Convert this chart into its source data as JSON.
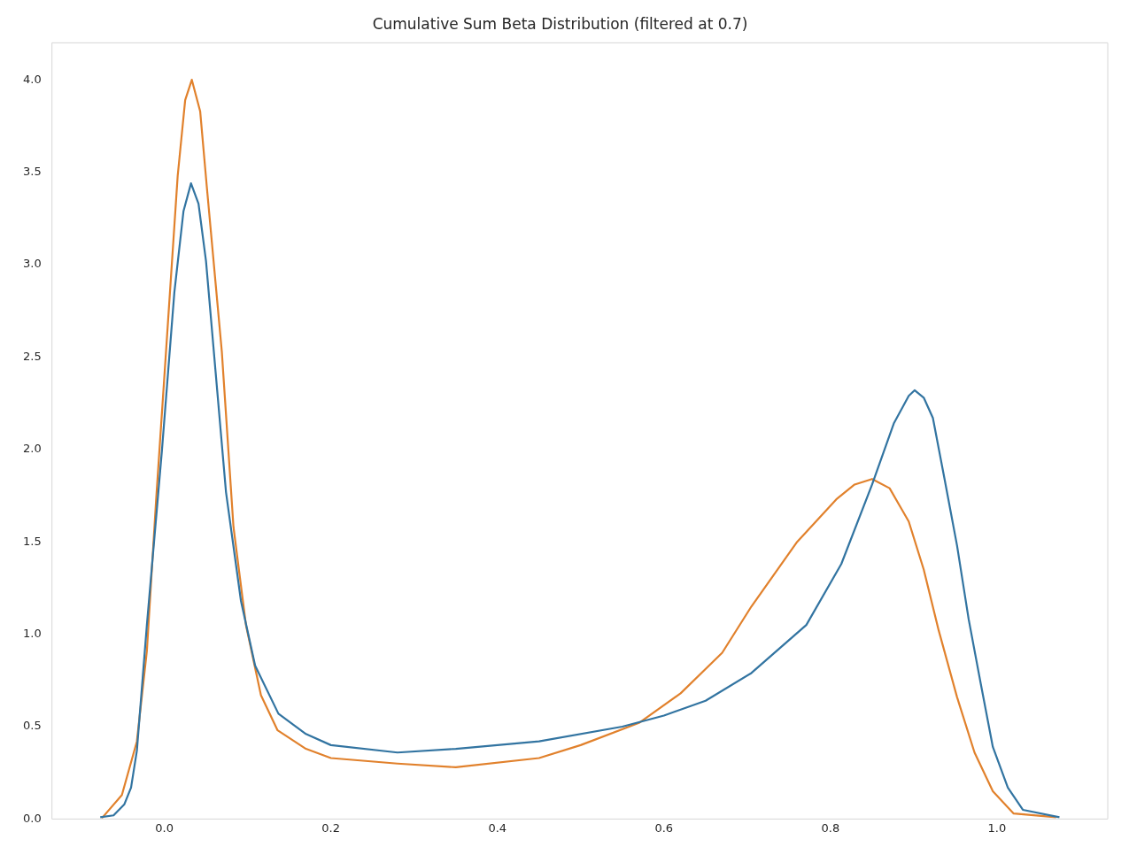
{
  "chart_data": {
    "type": "line",
    "title": "Cumulative Sum Beta Distribution (filtered at 0.7)",
    "grid": false,
    "marker": "none",
    "line_style": "solid",
    "xlim": [
      -0.135,
      1.133
    ],
    "ylim": [
      0,
      4.2
    ],
    "xticks": [
      {
        "value": 0,
        "label": "0.0"
      },
      {
        "value": 0.2,
        "label": "0.2"
      },
      {
        "value": 0.4,
        "label": "0.4"
      },
      {
        "value": 0.6,
        "label": "0.6"
      },
      {
        "value": 0.8,
        "label": "0.8"
      },
      {
        "value": 1,
        "label": "1.0"
      }
    ],
    "yticks": [
      {
        "value": 0,
        "label": "0.0"
      },
      {
        "value": 0.5,
        "label": "0.5"
      },
      {
        "value": 1,
        "label": "1.0"
      },
      {
        "value": 1.5,
        "label": "1.5"
      },
      {
        "value": 2,
        "label": "2.0"
      },
      {
        "value": 2.5,
        "label": "2.5"
      },
      {
        "value": 3,
        "label": "3.0"
      },
      {
        "value": 3.5,
        "label": "3.5"
      },
      {
        "value": 4,
        "label": "4.0"
      }
    ],
    "series": [
      {
        "color": "#3274a1",
        "x": [
          -0.077,
          -0.061,
          -0.048,
          -0.04,
          -0.033,
          -0.021,
          -0.003,
          0.012,
          0.023,
          0.032,
          0.041,
          0.05,
          0.074,
          0.092,
          0.109,
          0.137,
          0.17,
          0.2,
          0.28,
          0.35,
          0.45,
          0.55,
          0.6,
          0.65,
          0.705,
          0.771,
          0.813,
          0.85,
          0.876,
          0.894,
          0.901,
          0.912,
          0.923,
          0.937,
          0.952,
          0.966,
          0.981,
          0.995,
          1.013,
          1.031,
          1.075
        ],
        "values": [
          0.01,
          0.02,
          0.08,
          0.17,
          0.37,
          1.05,
          1.99,
          2.85,
          3.29,
          3.44,
          3.33,
          3.02,
          1.77,
          1.18,
          0.83,
          0.57,
          0.46,
          0.4,
          0.36,
          0.38,
          0.42,
          0.5,
          0.56,
          0.64,
          0.79,
          1.05,
          1.38,
          1.81,
          2.14,
          2.29,
          2.32,
          2.28,
          2.17,
          1.84,
          1.48,
          1.08,
          0.72,
          0.39,
          0.17,
          0.05,
          0.01
        ]
      },
      {
        "color": "#e1812c",
        "x": [
          -0.075,
          -0.051,
          -0.033,
          -0.021,
          -0.01,
          0.002,
          0.016,
          0.025,
          0.033,
          0.043,
          0.051,
          0.069,
          0.083,
          0.098,
          0.116,
          0.136,
          0.17,
          0.2,
          0.28,
          0.35,
          0.45,
          0.5,
          0.57,
          0.62,
          0.67,
          0.705,
          0.76,
          0.807,
          0.829,
          0.85,
          0.871,
          0.894,
          0.912,
          0.93,
          0.952,
          0.973,
          0.995,
          1.02,
          1.071
        ],
        "values": [
          0.005,
          0.13,
          0.42,
          0.91,
          1.72,
          2.53,
          3.48,
          3.89,
          4.0,
          3.83,
          3.42,
          2.53,
          1.58,
          1.05,
          0.67,
          0.48,
          0.38,
          0.33,
          0.3,
          0.28,
          0.33,
          0.4,
          0.52,
          0.68,
          0.9,
          1.15,
          1.5,
          1.73,
          1.81,
          1.84,
          1.79,
          1.61,
          1.35,
          1.02,
          0.66,
          0.36,
          0.15,
          0.03,
          0.01
        ]
      }
    ]
  }
}
